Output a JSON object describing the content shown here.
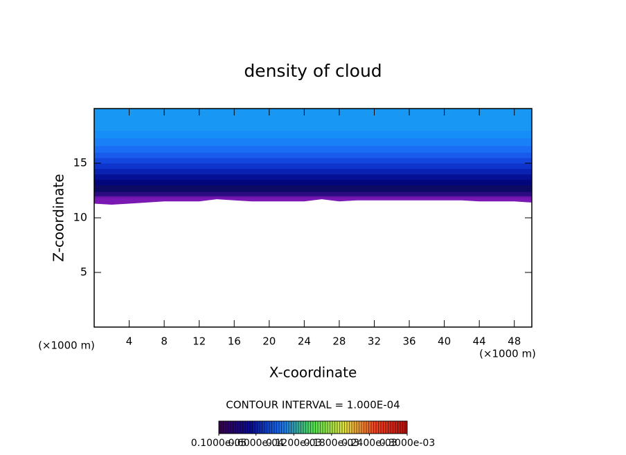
{
  "chart_data": {
    "type": "contour",
    "title": "density of cloud",
    "x_label": "X-coordinate",
    "y_label": "Z-coordinate",
    "x_unit": "(×1000 m)",
    "y_unit": "(×1000 m)",
    "interval_label": "CONTOUR INTERVAL = 1.000E-04",
    "xlim": [
      0,
      50
    ],
    "ylim": [
      0,
      20
    ],
    "xticks": [
      4,
      8,
      12,
      16,
      20,
      24,
      28,
      32,
      36,
      40,
      44,
      48
    ],
    "yticks": [
      5,
      10,
      15
    ],
    "x": [
      0,
      2,
      4,
      6,
      8,
      10,
      12,
      14,
      16,
      18,
      20,
      22,
      24,
      26,
      28,
      30,
      32,
      34,
      36,
      38,
      40,
      42,
      44,
      46,
      48,
      50
    ],
    "base": [
      11.3,
      11.2,
      11.3,
      11.4,
      11.5,
      11.5,
      11.5,
      11.7,
      11.6,
      11.5,
      11.5,
      11.5,
      11.5,
      11.7,
      11.5,
      11.6,
      11.6,
      11.6,
      11.6,
      11.6,
      11.6,
      11.6,
      11.5,
      11.5,
      11.5,
      11.4
    ],
    "base_color": "#7a18b4",
    "bands": [
      {
        "top": 12.0,
        "color": "#5812a4"
      },
      {
        "top": 12.4,
        "color": "#2a0c80"
      },
      {
        "top": 13.0,
        "color": "#0c0a62"
      },
      {
        "top": 13.5,
        "color": "#03067a"
      },
      {
        "top": 14.0,
        "color": "#061094"
      },
      {
        "top": 14.5,
        "color": "#0a22b2"
      },
      {
        "top": 15.0,
        "color": "#0e34cc"
      },
      {
        "top": 15.5,
        "color": "#1346de"
      },
      {
        "top": 16.0,
        "color": "#185aec"
      },
      {
        "top": 16.6,
        "color": "#1a6ef4"
      },
      {
        "top": 17.3,
        "color": "#1a80f8"
      },
      {
        "top": 18.0,
        "color": "#168ef8"
      },
      {
        "top": 20.0,
        "color": "#1898f2"
      }
    ],
    "colorbar": {
      "colors": [
        "#3a0050",
        "#0a0a90",
        "#1a70f0",
        "#50e050",
        "#e0e040",
        "#f04020",
        "#b01010"
      ],
      "ticks": [
        {
          "value": 1e-06,
          "label": "0.1000e-05"
        },
        {
          "value": 6e-05,
          "label": "0.6000e-04"
        },
        {
          "value": 0.00012,
          "label": "0.1200e-03"
        },
        {
          "value": 0.00018,
          "label": "0.1800e-03"
        },
        {
          "value": 0.00024,
          "label": "0.2400e-03"
        },
        {
          "value": 0.0003,
          "label": "0.3000e-03"
        }
      ]
    }
  }
}
